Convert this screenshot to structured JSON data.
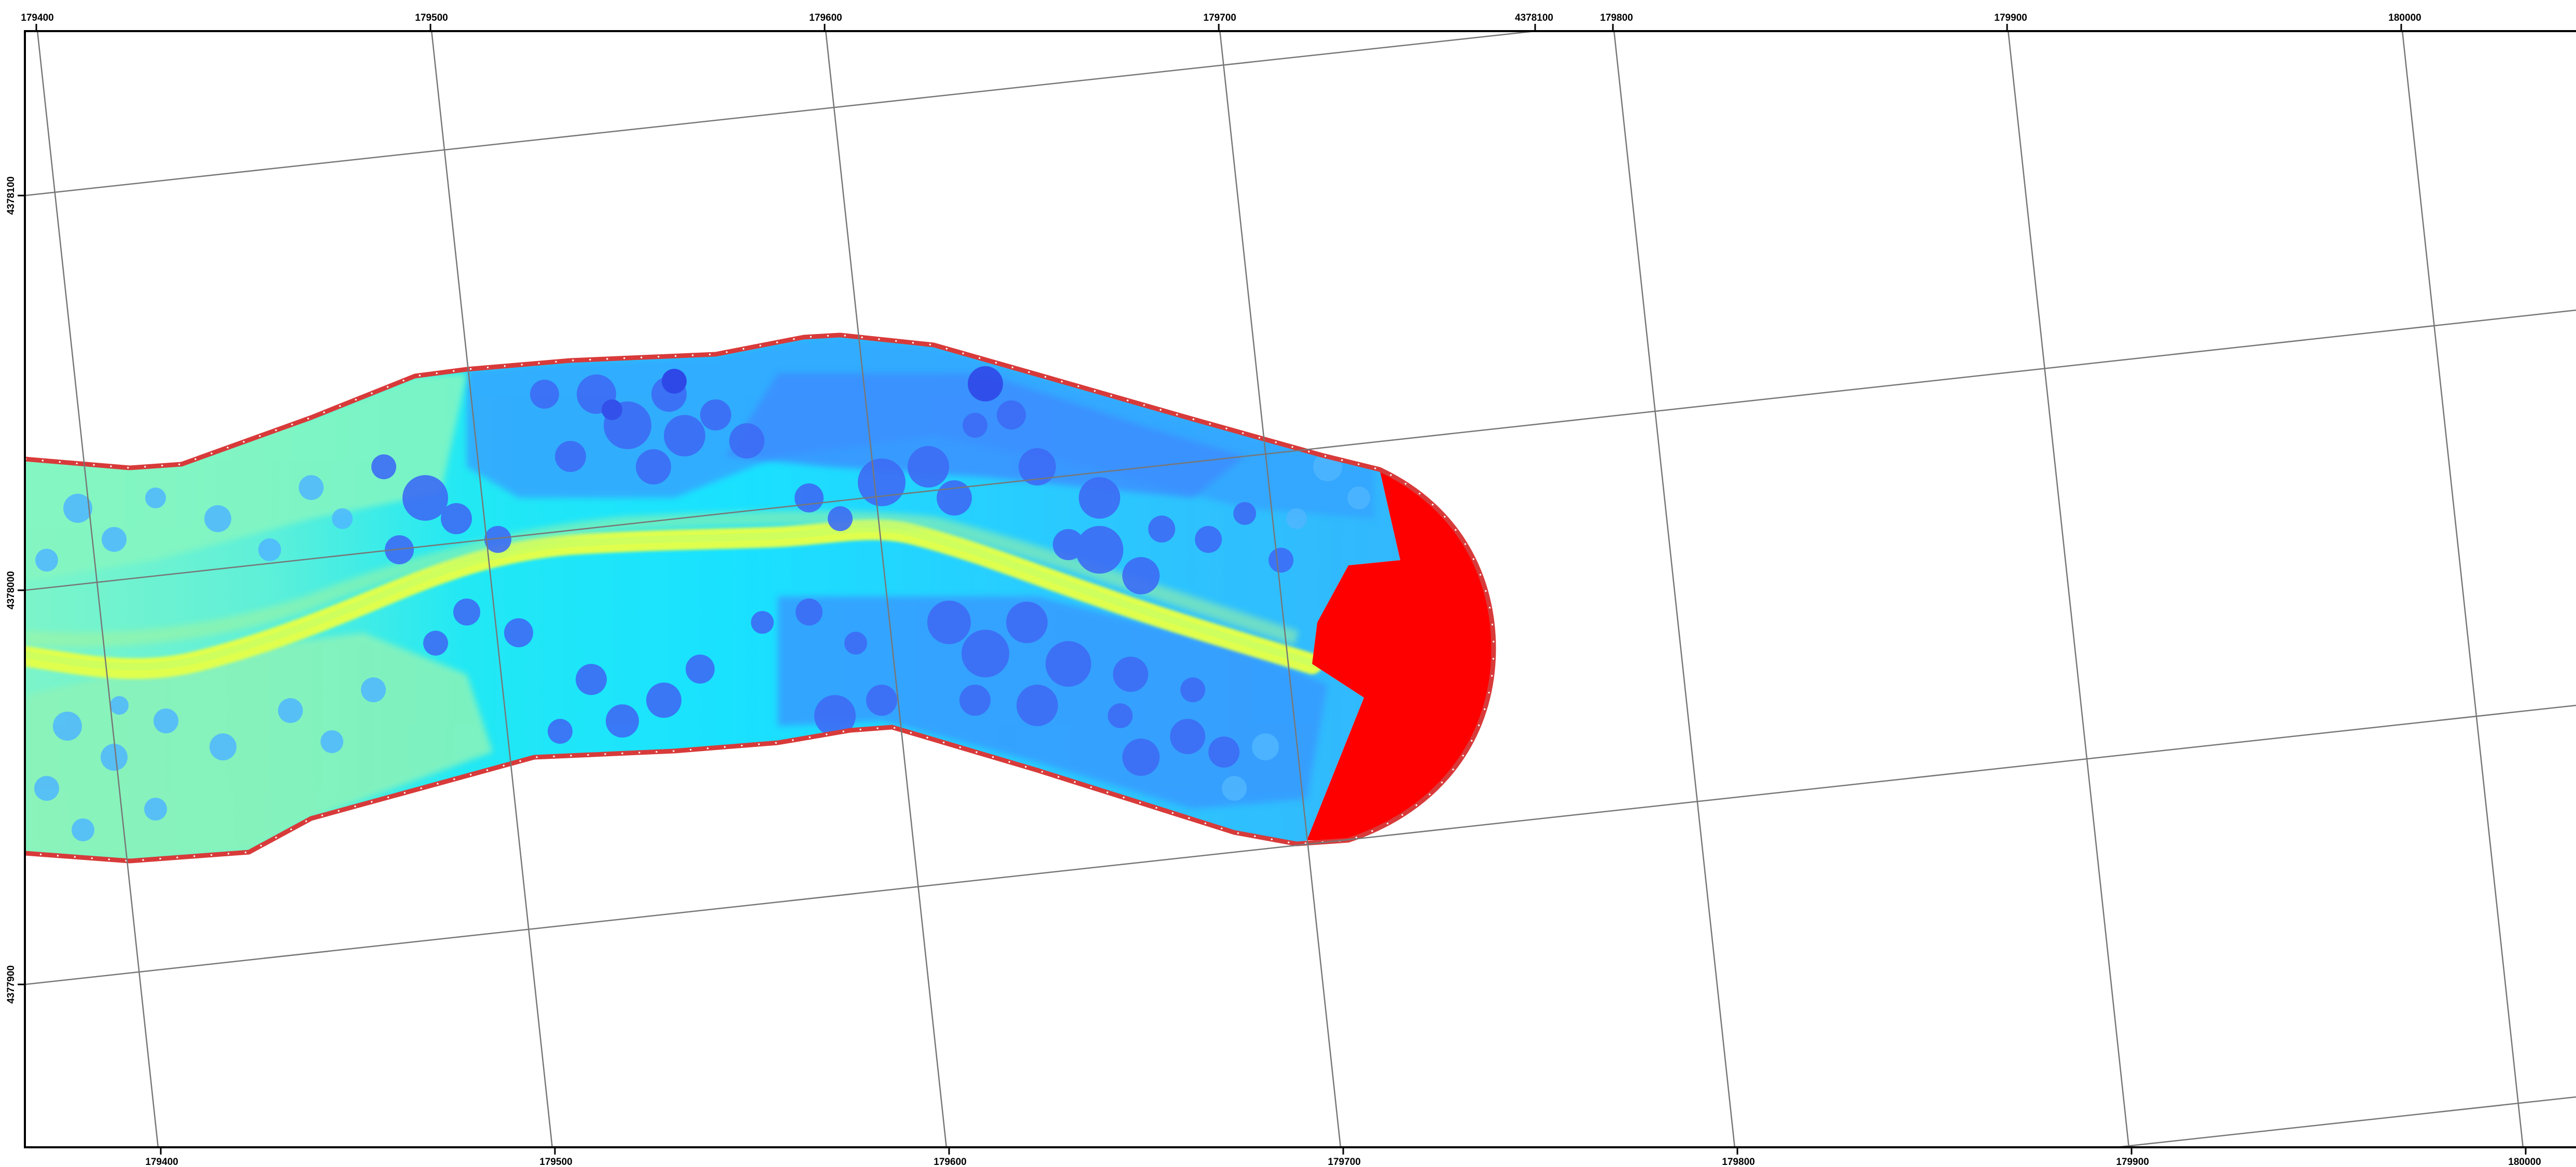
{
  "map": {
    "top_labels": [
      "179400",
      "179500",
      "179600",
      "179700",
      "4378100",
      "179800",
      "179900",
      "180000"
    ],
    "bottom_labels": [
      "179400",
      "179500",
      "179600",
      "179700",
      "179800",
      "179900",
      "180000"
    ],
    "left_labels": [
      "4378100",
      "4378000",
      "4377900"
    ],
    "colors": {
      "frame": "#000000",
      "grid": "#777777",
      "boundary": "#d83a3a",
      "boundary_ticks": "#ffffff",
      "red_zone": "#ff0000",
      "ramp_yellow": "#e4ff4c",
      "ramp_green": "#7fffc8",
      "ramp_cyan": "#19eaff",
      "ramp_sky": "#2ab8ff",
      "ramp_blue": "#3a86ff",
      "ramp_deep": "#3b49f0"
    }
  }
}
